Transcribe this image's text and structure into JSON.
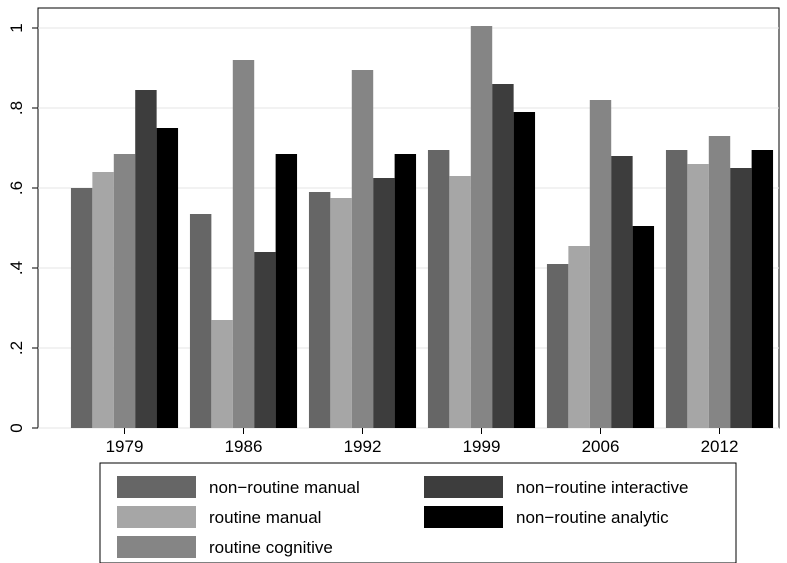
{
  "chart_data": {
    "type": "bar",
    "categories": [
      "1979",
      "1986",
      "1992",
      "1999",
      "2006",
      "2012"
    ],
    "series": [
      {
        "name": "non−routine manual",
        "color": "#666666",
        "values": [
          0.6,
          0.535,
          0.59,
          0.695,
          0.41,
          0.695
        ]
      },
      {
        "name": "routine manual",
        "color": "#a6a6a6",
        "values": [
          0.64,
          0.27,
          0.575,
          0.63,
          0.455,
          0.66
        ]
      },
      {
        "name": "routine cognitive",
        "color": "#858585",
        "values": [
          0.685,
          0.92,
          0.895,
          1.005,
          0.82,
          0.73
        ]
      },
      {
        "name": "non−routine interactive",
        "color": "#3d3d3d",
        "values": [
          0.845,
          0.44,
          0.625,
          0.86,
          0.68,
          0.65
        ]
      },
      {
        "name": "non−routine analytic",
        "color": "#000000",
        "values": [
          0.75,
          0.685,
          0.685,
          0.79,
          0.505,
          0.695
        ]
      }
    ],
    "yticks": [
      0,
      0.2,
      0.4,
      0.6,
      0.8,
      1
    ],
    "ytick_labels": [
      "0",
      ".2",
      ".4",
      ".6",
      ".8",
      "1"
    ],
    "ylim": [
      0,
      1.05
    ],
    "grid": true,
    "legend_position": "bottom",
    "xlabel": "",
    "ylabel": "",
    "title": ""
  }
}
